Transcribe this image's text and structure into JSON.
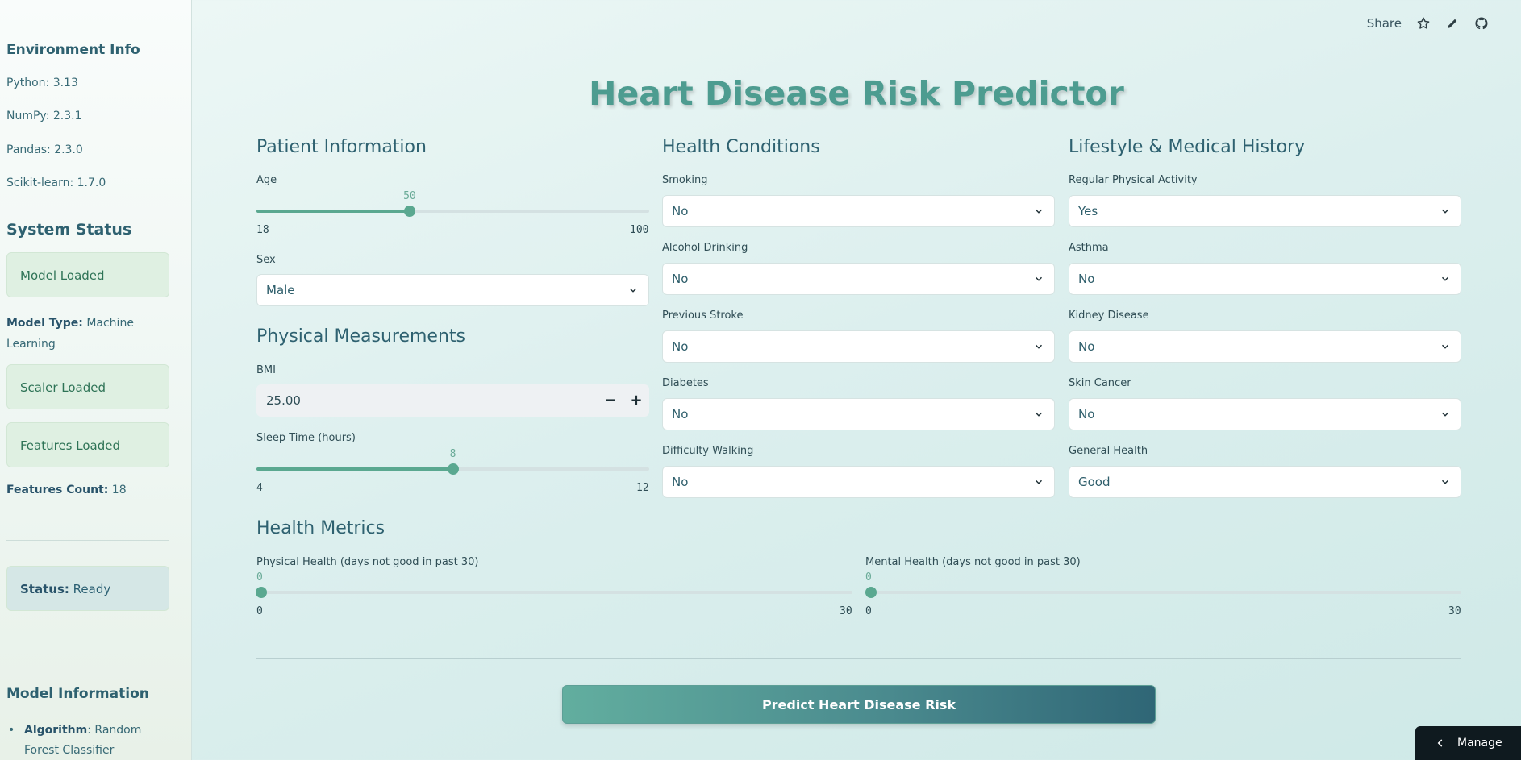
{
  "sidebar": {
    "env_heading": "Environment Info",
    "env_items": [
      "Python: 3.13",
      "NumPy: 2.3.1",
      "Pandas: 2.3.0",
      "Scikit-learn: 1.7.0"
    ],
    "status_heading": "System Status",
    "model_loaded": "Model Loaded",
    "model_type_label": "Model Type:",
    "model_type_value": "Machine Learning",
    "scaler_loaded": "Scaler Loaded",
    "features_loaded": "Features Loaded",
    "features_count_label": "Features Count:",
    "features_count_value": "18",
    "status_label": "Status:",
    "status_value": "Ready",
    "model_info_heading": "Model Information",
    "algorithm_label": "Algorithm",
    "algorithm_value": ": Random Forest Classifier"
  },
  "toolbar": {
    "share": "Share",
    "icons": [
      "star-icon",
      "edit-icon",
      "github-icon"
    ]
  },
  "title": "Heart Disease Risk Predictor",
  "patient": {
    "heading": "Patient Information",
    "age_label": "Age",
    "age_value": 50,
    "age_min": 18,
    "age_max": 100,
    "sex_label": "Sex",
    "sex_value": "Male"
  },
  "physical": {
    "heading": "Physical Measurements",
    "bmi_label": "BMI",
    "bmi_value": "25.00",
    "bmi_minus": "−",
    "bmi_plus": "+",
    "sleep_label": "Sleep Time (hours)",
    "sleep_value": 8,
    "sleep_min": 4,
    "sleep_max": 12
  },
  "conditions": {
    "heading": "Health Conditions",
    "smoking_label": "Smoking",
    "smoking_value": "No",
    "alcohol_label": "Alcohol Drinking",
    "alcohol_value": "No",
    "stroke_label": "Previous Stroke",
    "stroke_value": "No",
    "diabetes_label": "Diabetes",
    "diabetes_value": "No",
    "walking_label": "Difficulty Walking",
    "walking_value": "No"
  },
  "lifestyle": {
    "heading": "Lifestyle & Medical History",
    "activity_label": "Regular Physical Activity",
    "activity_value": "Yes",
    "asthma_label": "Asthma",
    "asthma_value": "No",
    "kidney_label": "Kidney Disease",
    "kidney_value": "No",
    "skin_label": "Skin Cancer",
    "skin_value": "No",
    "general_label": "General Health",
    "general_value": "Good"
  },
  "metrics": {
    "heading": "Health Metrics",
    "physical_label": "Physical Health (days not good in past 30)",
    "physical_value": 0,
    "physical_min": 0,
    "physical_max": 30,
    "mental_label": "Mental Health (days not good in past 30)",
    "mental_value": 0,
    "mental_min": 0,
    "mental_max": 30
  },
  "predict_button": "Predict Heart Disease Risk",
  "manage_app": "Manage app",
  "colors": {
    "accent": "#5aa890",
    "heading": "#2e6170",
    "title": "#4d9c90",
    "success_box": "#dff0e2",
    "info_box": "#d5e7e6"
  }
}
